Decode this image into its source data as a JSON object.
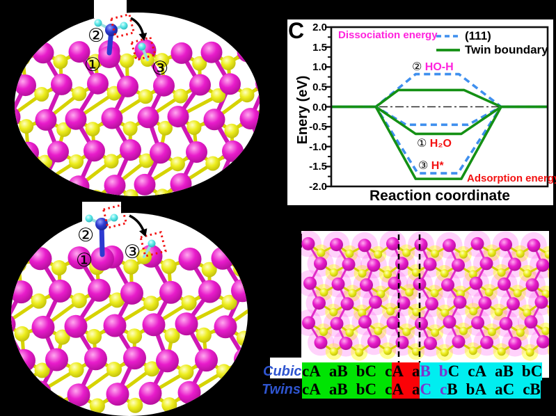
{
  "colors": {
    "background": "#000000",
    "panel_white": "#ffffff",
    "magenta_atom": "#e51ac8",
    "yellow_atom": "#e8e50f",
    "blue_atom": "#2c3ad0",
    "cyan_atom": "#5ce9e9",
    "bond_magenta": "#cf17b6",
    "bond_yellow": "#d6d300",
    "red_dotted_box": "#f21111",
    "arrow": "#000000",
    "line_111_blue": "#3f8fee",
    "line_twin_green": "#149014",
    "magenta_text": "#ff22dd",
    "red_text": "#f31111",
    "table_green": "#00e403",
    "table_red": "#fb0207",
    "table_cyan": "#00eef0",
    "purple_letter": "#7b35cf",
    "row_label_blue": "#2f55cf"
  },
  "molecule_labels": {
    "step1": "①",
    "step2": "②",
    "step3": "③"
  },
  "chart_data": {
    "type": "line",
    "panel_label": "C",
    "xlabel": "Reaction coordinate",
    "ylabel": "Enery (eV)",
    "ylim": [
      -2.0,
      2.0
    ],
    "yticks": [
      2.0,
      1.5,
      1.0,
      0.5,
      0.0,
      -0.5,
      -1.0,
      -1.5,
      -2.0
    ],
    "grid": false,
    "zero_line": true,
    "legend_position": "top-right-inside",
    "legend": [
      {
        "name": "(111)",
        "style": "dashed",
        "color": "#3f8fee"
      },
      {
        "name": "Twin boundary",
        "style": "solid",
        "color": "#149014"
      }
    ],
    "annotations": [
      {
        "text": "Dissociation energy",
        "color": "#ff22dd"
      },
      {
        "prefix": "②",
        "text": "HO-H",
        "color": "#ff22dd"
      },
      {
        "prefix": "①",
        "text": "H₂O",
        "color": "#f31111"
      },
      {
        "prefix": "③",
        "text": "H*",
        "color": "#f31111"
      },
      {
        "text": "Adsorption energy",
        "color": "#f31111"
      }
    ],
    "series": [
      {
        "name": "(111) HO-H dissociation barrier",
        "style": "dashed",
        "color": "#3f8fee",
        "x": [
          0,
          0.206,
          0.39,
          0.59,
          0.785,
          1
        ],
        "y": [
          0,
          0,
          0.82,
          0.82,
          0,
          0
        ]
      },
      {
        "name": "Twin boundary HO-H dissociation barrier",
        "style": "solid",
        "color": "#149014",
        "x": [
          0,
          0.206,
          0.31,
          0.614,
          0.785,
          1
        ],
        "y": [
          0,
          0,
          0.42,
          0.42,
          0,
          0
        ]
      },
      {
        "name": "(111) H2O adsorption",
        "style": "dashed",
        "color": "#3f8fee",
        "x": [
          0,
          0.206,
          0.345,
          0.633,
          0.785,
          1
        ],
        "y": [
          0,
          0,
          -0.45,
          -0.45,
          0,
          0
        ]
      },
      {
        "name": "Twin boundary H2O adsorption",
        "style": "solid",
        "color": "#149014",
        "x": [
          0,
          0.206,
          0.39,
          0.601,
          0.785,
          1
        ],
        "y": [
          0,
          0,
          -0.68,
          -0.68,
          0,
          0
        ]
      },
      {
        "name": "(111) H* adsorption",
        "style": "dashed",
        "color": "#3f8fee",
        "x": [
          0,
          0.206,
          0.4,
          0.585,
          0.785,
          1
        ],
        "y": [
          0,
          0,
          -1.67,
          -1.67,
          0,
          0
        ]
      },
      {
        "name": "Twin boundary H* adsorption",
        "style": "solid",
        "color": "#149014",
        "x": [
          0,
          0.206,
          0.39,
          0.601,
          0.785,
          1
        ],
        "y": [
          0,
          0,
          -1.81,
          -1.81,
          0,
          0
        ]
      }
    ]
  },
  "stacking": {
    "row_labels": [
      "Cubic",
      "Twins"
    ],
    "rows": [
      {
        "label": "Cubic",
        "cells": [
          [
            "c",
            "G",
            0,
            0
          ],
          [
            "A",
            "G",
            1,
            0
          ],
          [
            "a",
            "G",
            0,
            0
          ],
          [
            "B",
            "G",
            1,
            0
          ],
          [
            "b",
            "G",
            0,
            0
          ],
          [
            "C",
            "G",
            1,
            0
          ],
          [
            "c",
            "G",
            0,
            0
          ],
          [
            "A",
            "R",
            1,
            0
          ],
          [
            "a",
            "R",
            0,
            0
          ],
          [
            "B",
            "C",
            1,
            1
          ],
          [
            "b",
            "C",
            0,
            1
          ],
          [
            "C",
            "C",
            1,
            0
          ],
          [
            "c",
            "C",
            0,
            0
          ],
          [
            "A",
            "C",
            1,
            0
          ],
          [
            "a",
            "C",
            0,
            0
          ],
          [
            "B",
            "C",
            1,
            0
          ],
          [
            "b",
            "C",
            0,
            0
          ],
          [
            "C",
            "C",
            0,
            0
          ]
        ]
      },
      {
        "label": "Twins",
        "cells": [
          [
            "c",
            "G",
            0,
            0
          ],
          [
            "A",
            "G",
            1,
            0
          ],
          [
            "a",
            "G",
            0,
            0
          ],
          [
            "B",
            "G",
            1,
            0
          ],
          [
            "b",
            "G",
            0,
            0
          ],
          [
            "C",
            "G",
            1,
            0
          ],
          [
            "c",
            "G",
            0,
            0
          ],
          [
            "A",
            "R",
            1,
            0
          ],
          [
            "a",
            "R",
            0,
            0
          ],
          [
            "C",
            "C",
            1,
            1
          ],
          [
            "c",
            "C",
            0,
            1
          ],
          [
            "B",
            "C",
            1,
            0
          ],
          [
            "b",
            "C",
            0,
            0
          ],
          [
            "A",
            "C",
            1,
            0
          ],
          [
            "a",
            "C",
            0,
            0
          ],
          [
            "C",
            "C",
            1,
            0
          ],
          [
            "c",
            "C",
            0,
            0
          ],
          [
            "B",
            "C",
            0,
            0
          ]
        ]
      }
    ]
  }
}
